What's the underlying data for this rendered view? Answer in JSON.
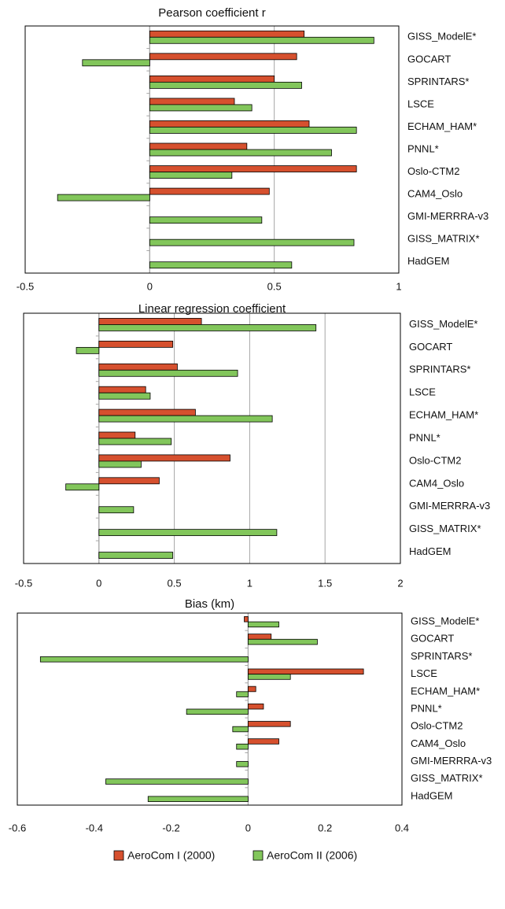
{
  "chart_data": [
    {
      "type": "bar",
      "orientation": "horizontal",
      "title": "Pearson coefficient r",
      "categories": [
        "GISS_ModelE*",
        "GOCART",
        "SPRINTARS*",
        "LSCE",
        "ECHAM_HAM*",
        "PNNL*",
        "Oslo-CTM2",
        "CAM4_Oslo",
        "GMI-MERRRA-v3",
        "GISS_MATRIX*",
        "HadGEM"
      ],
      "series": [
        {
          "name": "AeroCom I (2000)",
          "color": "#d6502e",
          "values": [
            0.62,
            0.59,
            0.5,
            0.34,
            0.64,
            0.39,
            0.83,
            0.48,
            null,
            null,
            null
          ]
        },
        {
          "name": "AeroCom II (2006)",
          "color": "#82c65b",
          "values": [
            0.9,
            -0.27,
            0.61,
            0.41,
            0.83,
            0.73,
            0.33,
            -0.37,
            0.45,
            0.82,
            0.57
          ]
        }
      ],
      "xlim": [
        -0.5,
        1
      ],
      "xticks": [
        -0.5,
        0,
        0.5,
        1
      ],
      "grid": true
    },
    {
      "type": "bar",
      "orientation": "horizontal",
      "title": "Linear regression coefficient",
      "categories": [
        "GISS_ModelE*",
        "GOCART",
        "SPRINTARS*",
        "LSCE",
        "ECHAM_HAM*",
        "PNNL*",
        "Oslo-CTM2",
        "CAM4_Oslo",
        "GMI-MERRRA-v3",
        "GISS_MATRIX*",
        "HadGEM"
      ],
      "series": [
        {
          "name": "AeroCom I (2000)",
          "color": "#d6502e",
          "values": [
            0.68,
            0.49,
            0.52,
            0.31,
            0.64,
            0.24,
            0.87,
            0.4,
            null,
            null,
            null
          ]
        },
        {
          "name": "AeroCom II (2006)",
          "color": "#82c65b",
          "values": [
            1.44,
            -0.15,
            0.92,
            0.34,
            1.15,
            0.48,
            0.28,
            -0.22,
            0.23,
            1.18,
            0.49
          ]
        }
      ],
      "xlim": [
        -0.5,
        2
      ],
      "xticks": [
        -0.5,
        0,
        0.5,
        1,
        1.5,
        2
      ],
      "grid": true
    },
    {
      "type": "bar",
      "orientation": "horizontal",
      "title": "Bias (km)",
      "categories": [
        "GISS_ModelE*",
        "GOCART",
        "SPRINTARS*",
        "LSCE",
        "ECHAM_HAM*",
        "PNNL*",
        "Oslo-CTM2",
        "CAM4_Oslo",
        "GMI-MERRRA-v3",
        "GISS_MATRIX*",
        "HadGEM"
      ],
      "series": [
        {
          "name": "AeroCom I (2000)",
          "color": "#d6502e",
          "values": [
            -0.01,
            0.06,
            null,
            0.3,
            0.02,
            0.04,
            0.11,
            0.08,
            null,
            null,
            null
          ]
        },
        {
          "name": "AeroCom II (2006)",
          "color": "#82c65b",
          "values": [
            0.08,
            0.18,
            -0.54,
            0.11,
            -0.03,
            -0.16,
            -0.04,
            -0.03,
            -0.03,
            -0.37,
            -0.26
          ]
        }
      ],
      "xlim": [
        -0.6,
        0.4
      ],
      "xticks": [
        -0.6,
        -0.4,
        -0.2,
        0,
        0.2,
        0.4
      ],
      "grid": false
    }
  ]
}
